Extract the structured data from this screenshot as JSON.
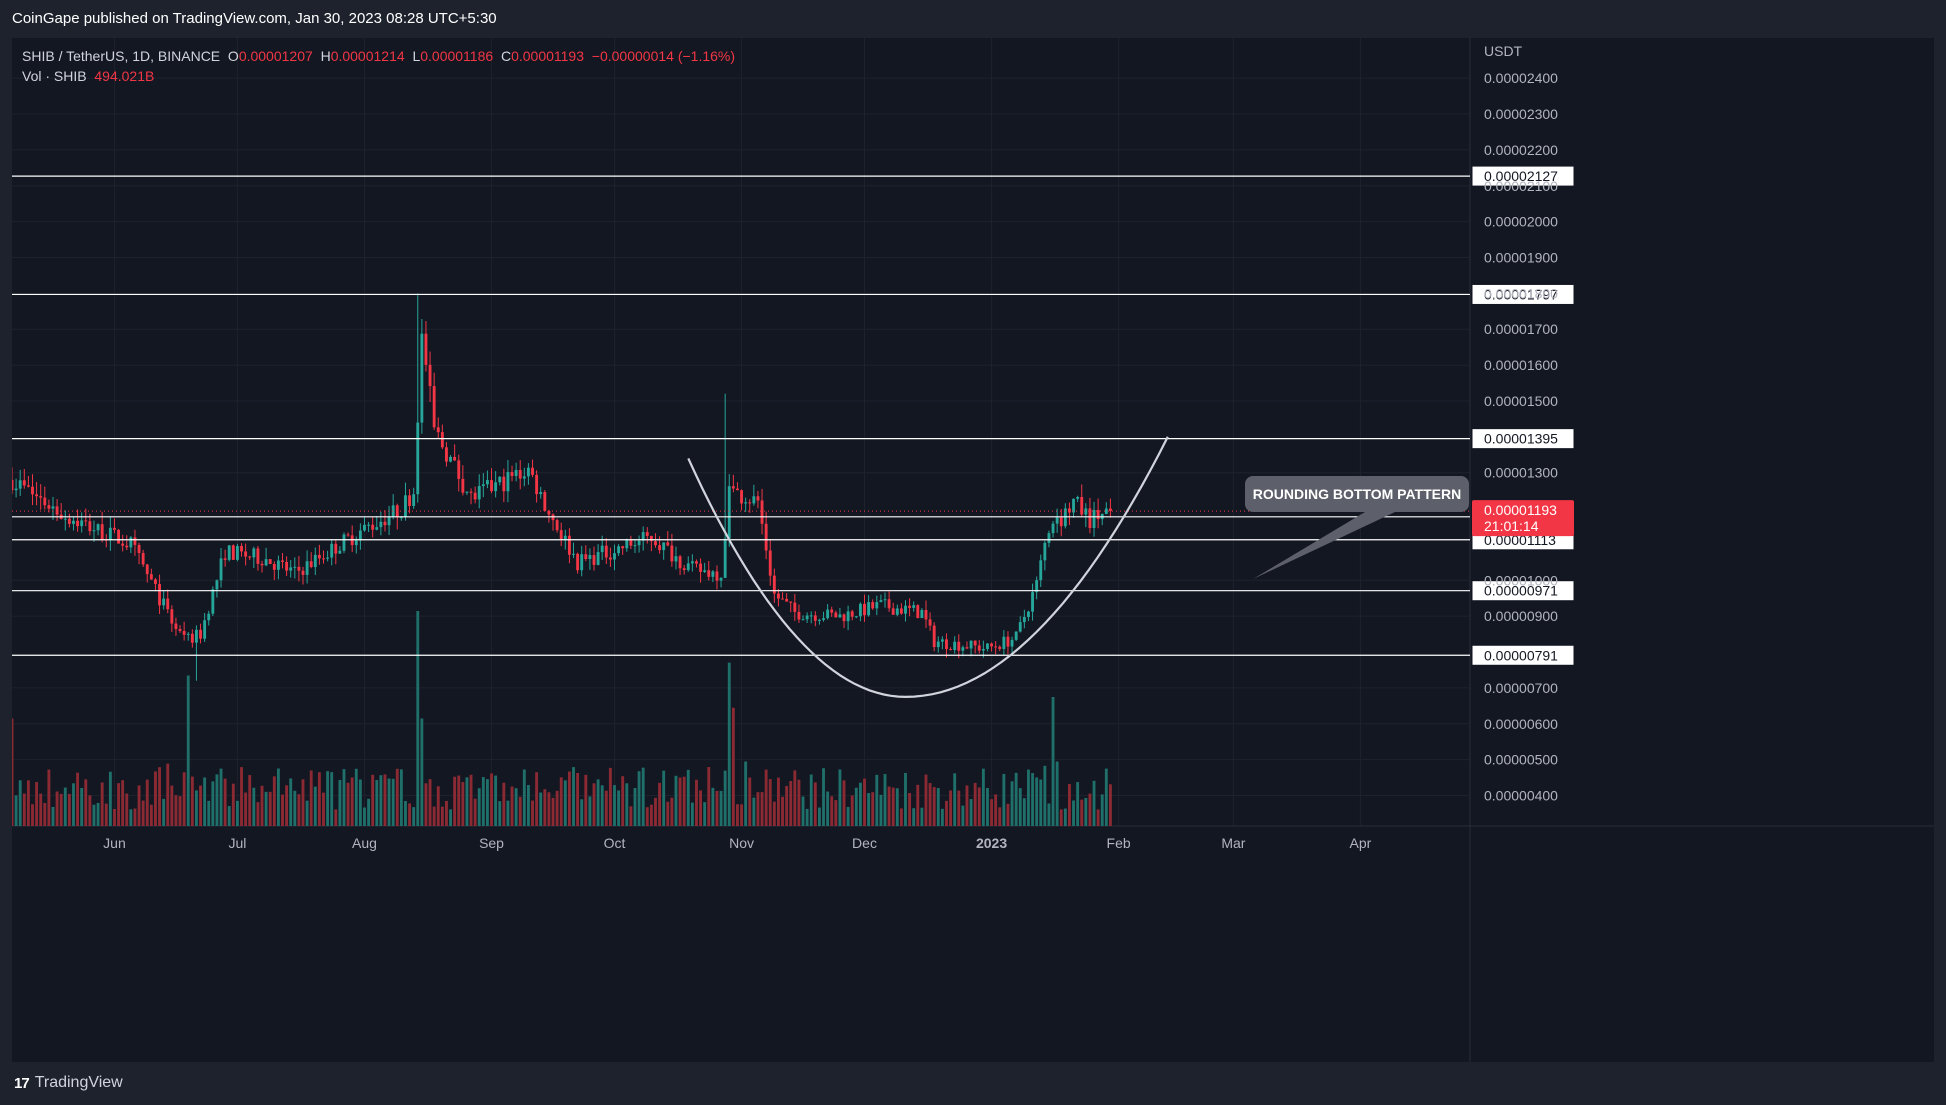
{
  "publisher": "CoinGape published on TradingView.com, Jan 30, 2023 08:28 UTC+5:30",
  "legend": {
    "symbol": "SHIB / TetherUS, 1D, BINANCE",
    "o_key": "O",
    "o": "0.00001207",
    "h_key": "H",
    "h": "0.00001214",
    "l_key": "L",
    "l": "0.00001186",
    "c_key": "C",
    "c": "0.00001193",
    "change": "−0.00000014 (−1.16%)",
    "vol_label": "Vol · SHIB",
    "vol_value": "494.021B"
  },
  "footer": {
    "brand": "TradingView",
    "logo_mark": "17"
  },
  "colors": {
    "background": "#131722",
    "up": "#26a69a",
    "down": "#f23645",
    "vol_up": "#1f6f6a",
    "vol_down": "#8c2a33",
    "level_line": "#ffffff",
    "curve": "#d1d4dc",
    "callout_bg": "#5d606b"
  },
  "chart_data": {
    "type": "candlestick",
    "symbol": "SHIB / TetherUS",
    "interval": "1D",
    "exchange": "BINANCE",
    "price_unit": "USDT",
    "ylim": [
      3.15e-06,
      2.512e-05
    ],
    "y_ticks": [
      "0.00002400",
      "0.00002300",
      "0.00002200",
      "0.00002100",
      "0.00002000",
      "0.00001900",
      "0.00001800",
      "0.00001700",
      "0.00001600",
      "0.00001500",
      "0.00001300",
      "0.00001000",
      "0.00000900",
      "0.00000700",
      "0.00000600",
      "0.00000500",
      "0.00000400"
    ],
    "x_ticks": [
      "Jun",
      "Jul",
      "Aug",
      "Sep",
      "Oct",
      "Nov",
      "Dec",
      "2023",
      "Feb",
      "Mar",
      "Apr"
    ],
    "x_range": [
      "2022-05-07",
      "2023-04-27"
    ],
    "x_tick_dates": [
      "2022-06-01",
      "2022-07-01",
      "2022-08-01",
      "2022-09-01",
      "2022-10-01",
      "2022-11-01",
      "2022-12-01",
      "2023-01-01",
      "2023-02-01",
      "2023-03-01",
      "2023-04-01"
    ],
    "horizontal_levels": [
      "0.00002127",
      "0.00001797",
      "0.00001395",
      "0.00001177",
      "0.00001113",
      "0.00000971",
      "0.00000791"
    ],
    "current_price": {
      "value": "0.00001193",
      "countdown": "21:01:14"
    },
    "annotation": "ROUNDING BOTTOM PATTERN",
    "pattern_curve": [
      {
        "date": "2022-10-19",
        "price": 1.34e-05
      },
      {
        "date": "2022-12-11",
        "price": 6.75e-06
      },
      {
        "date": "2023-02-13",
        "price": 1.4e-05
      }
    ],
    "anchors": [
      {
        "date": "2022-05-07",
        "price": 1.28e-05
      },
      {
        "date": "2022-05-20",
        "price": 1.18e-05
      },
      {
        "date": "2022-06-05",
        "price": 1.1e-05
      },
      {
        "date": "2022-06-12",
        "price": 9.5e-06
      },
      {
        "date": "2022-06-18",
        "price": 8.3e-06
      },
      {
        "date": "2022-06-22",
        "price": 8.5e-06
      },
      {
        "date": "2022-06-28",
        "price": 1.08e-05
      },
      {
        "date": "2022-07-08",
        "price": 1.06e-05
      },
      {
        "date": "2022-07-15",
        "price": 1.02e-05
      },
      {
        "date": "2022-07-30",
        "price": 1.13e-05
      },
      {
        "date": "2022-08-10",
        "price": 1.2e-05
      },
      {
        "date": "2022-08-13",
        "price": 1.25e-05
      },
      {
        "date": "2022-08-15",
        "price": 1.69e-05
      },
      {
        "date": "2022-08-18",
        "price": 1.42e-05
      },
      {
        "date": "2022-08-27",
        "price": 1.23e-05
      },
      {
        "date": "2022-09-10",
        "price": 1.31e-05
      },
      {
        "date": "2022-09-15",
        "price": 1.19e-05
      },
      {
        "date": "2022-09-22",
        "price": 1.05e-05
      },
      {
        "date": "2022-10-10",
        "price": 1.12e-05
      },
      {
        "date": "2022-10-20",
        "price": 1.03e-05
      },
      {
        "date": "2022-10-27",
        "price": 1.02e-05
      },
      {
        "date": "2022-10-29",
        "price": 1.25e-05
      },
      {
        "date": "2022-11-05",
        "price": 1.22e-05
      },
      {
        "date": "2022-11-09",
        "price": 9.6e-06
      },
      {
        "date": "2022-11-14",
        "price": 9.1e-06
      },
      {
        "date": "2022-11-25",
        "price": 9e-06
      },
      {
        "date": "2022-12-05",
        "price": 9.3e-06
      },
      {
        "date": "2022-12-15",
        "price": 9.1e-06
      },
      {
        "date": "2022-12-18",
        "price": 8.3e-06
      },
      {
        "date": "2022-12-31",
        "price": 8.1e-06
      },
      {
        "date": "2023-01-07",
        "price": 8.4e-06
      },
      {
        "date": "2023-01-12",
        "price": 9.9e-06
      },
      {
        "date": "2023-01-14",
        "price": 1.1e-05
      },
      {
        "date": "2023-01-16",
        "price": 1.14e-05
      },
      {
        "date": "2023-01-21",
        "price": 1.22e-05
      },
      {
        "date": "2023-01-25",
        "price": 1.17e-05
      },
      {
        "date": "2023-01-30",
        "price": 1.193e-05
      }
    ],
    "spikes": [
      {
        "date": "2022-08-14",
        "high": 1.8e-05
      },
      {
        "date": "2022-10-28",
        "high": 1.52e-05
      },
      {
        "date": "2022-06-21",
        "low": 7.2e-06
      }
    ],
    "volume": {
      "scale_max": 1.0,
      "baseline": 0.22,
      "peaks": [
        {
          "date": "2022-05-07",
          "v": 0.5
        },
        {
          "date": "2022-06-14",
          "v": 0.29
        },
        {
          "date": "2022-06-19",
          "v": 0.7
        },
        {
          "date": "2022-08-14",
          "v": 1.0
        },
        {
          "date": "2022-08-15",
          "v": 0.5
        },
        {
          "date": "2022-10-29",
          "v": 0.76
        },
        {
          "date": "2022-10-30",
          "v": 0.55
        },
        {
          "date": "2022-11-02",
          "v": 0.3
        },
        {
          "date": "2023-01-14",
          "v": 0.28
        },
        {
          "date": "2023-01-16",
          "v": 0.6
        },
        {
          "date": "2023-01-17",
          "v": 0.3
        }
      ]
    }
  }
}
